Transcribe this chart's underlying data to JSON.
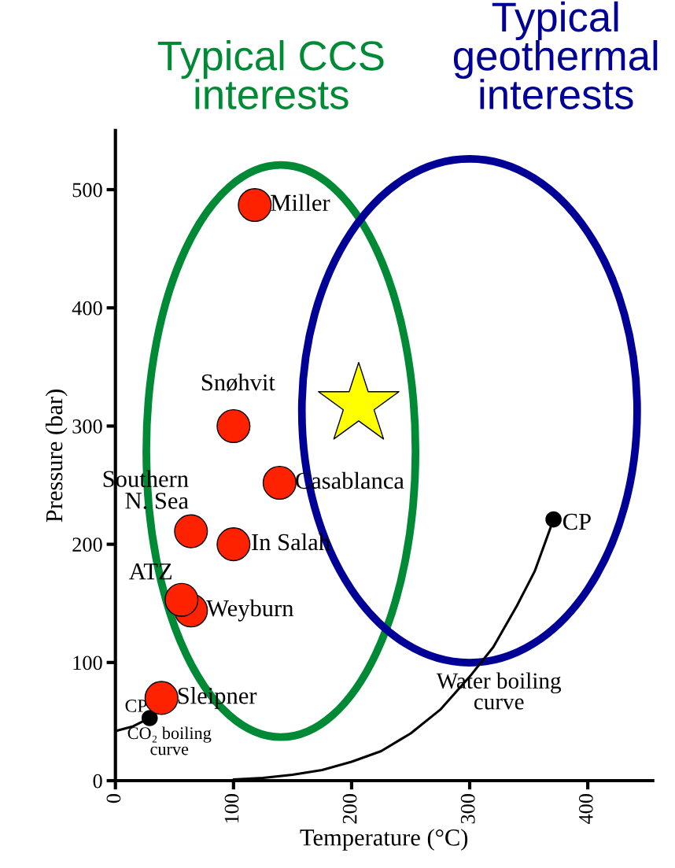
{
  "chart_data": {
    "type": "scatter",
    "xlabel": "Temperature (°C)",
    "ylabel": "Pressure (bar)",
    "xlim": [
      0,
      455
    ],
    "ylim": [
      0,
      550
    ],
    "xticks": [
      0,
      100,
      200,
      300,
      400
    ],
    "yticks": [
      0,
      100,
      200,
      300,
      400,
      500
    ],
    "grid": false,
    "legend": false,
    "series": [
      {
        "type": "line",
        "name": "CO₂ boiling curve",
        "color": "#000000",
        "x": [
          0,
          15,
          29
        ],
        "values": [
          42,
          46,
          53
        ]
      },
      {
        "type": "line",
        "name": "Water boiling curve",
        "color": "#000000",
        "x": [
          100,
          125,
          150,
          175,
          200,
          225,
          250,
          275,
          300,
          320,
          340,
          355,
          371
        ],
        "values": [
          1,
          2.3,
          5,
          9,
          16,
          25,
          40,
          60,
          88,
          113,
          148,
          177,
          221
        ]
      },
      {
        "marker": "circle",
        "color": "#000000",
        "x": [
          29,
          371
        ],
        "values": [
          53,
          221
        ]
      },
      {
        "marker": "circle",
        "color": "#ff2200",
        "x": [
          118,
          100,
          139,
          64,
          100,
          64,
          56,
          39
        ],
        "values": [
          487,
          300,
          252,
          211,
          200,
          144,
          153,
          70
        ]
      },
      {
        "marker": "star",
        "color": "#ffff00",
        "x": [
          206
        ],
        "values": [
          318
        ]
      }
    ],
    "annotations": [
      "Typical CCS interests",
      "Typical geothermal interests",
      {
        "text": "Miller",
        "x": 118,
        "y": 487
      },
      {
        "text": "Snøhvit",
        "x": 100,
        "y": 300
      },
      {
        "text": "Casablanca",
        "x": 139,
        "y": 252
      },
      {
        "text": "Southern\nN. Sea",
        "x": 64,
        "y": 211
      },
      {
        "text": "In Salah",
        "x": 100,
        "y": 200
      },
      {
        "text": "Weyburn",
        "x": 64,
        "y": 144
      },
      {
        "text": "ATZ",
        "x": 56,
        "y": 153
      },
      {
        "text": "Sleipner",
        "x": 39,
        "y": 70
      },
      {
        "text": "CP",
        "x": 29,
        "y": 53
      },
      {
        "text": "CP",
        "x": 371,
        "y": 221
      }
    ]
  }
}
